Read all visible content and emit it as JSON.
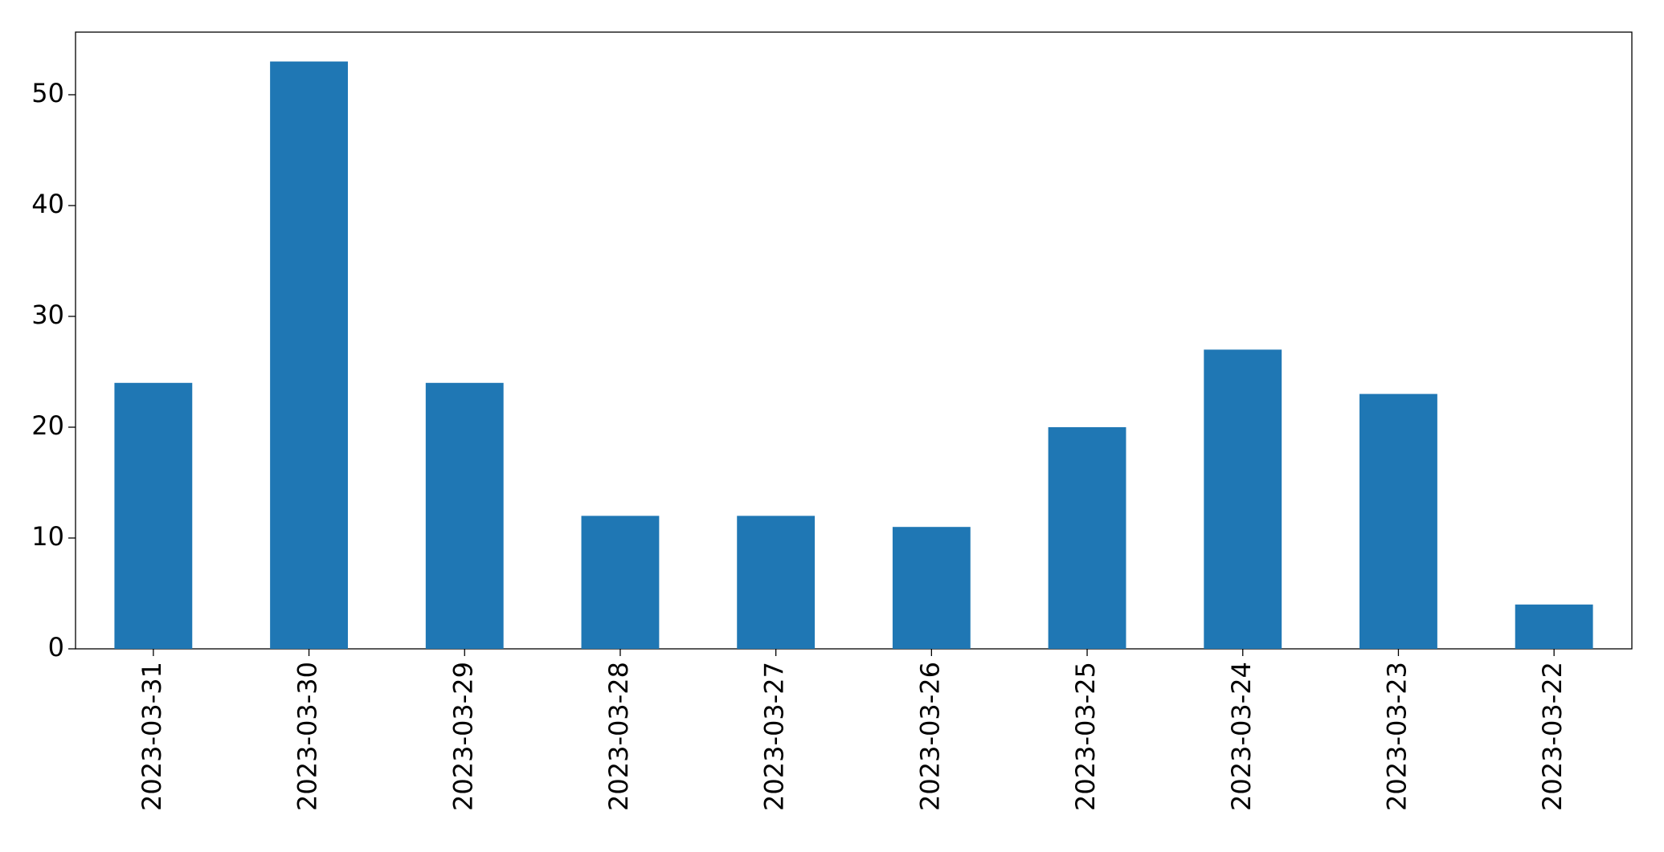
{
  "chart_data": {
    "type": "bar",
    "categories": [
      "2023-03-31",
      "2023-03-30",
      "2023-03-29",
      "2023-03-28",
      "2023-03-27",
      "2023-03-26",
      "2023-03-25",
      "2023-03-24",
      "2023-03-23",
      "2023-03-22"
    ],
    "values": [
      24,
      53,
      24,
      12,
      12,
      11,
      20,
      27,
      23,
      4
    ],
    "color": "#1f77b4",
    "ylim": [
      0,
      55.65
    ],
    "yticks": [
      0,
      10,
      20,
      30,
      40,
      50
    ],
    "grid": false
  }
}
